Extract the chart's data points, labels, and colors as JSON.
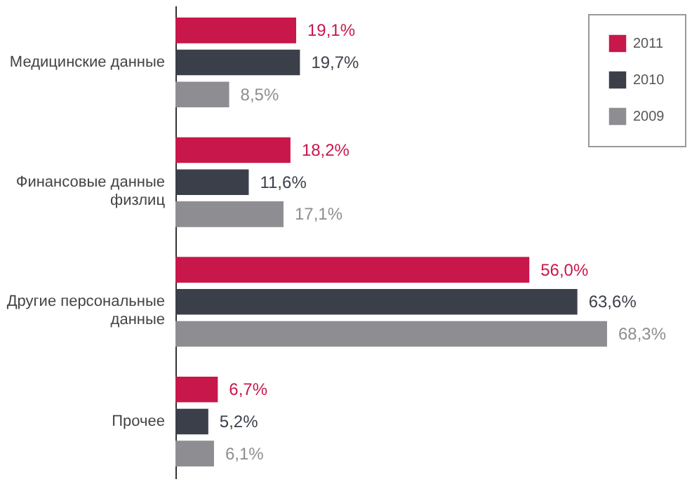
{
  "chart_data": {
    "type": "bar",
    "orientation": "horizontal",
    "legend": "top right",
    "grid": false,
    "categories": [
      "Медицинские данные",
      "Финансовые данные физлиц",
      "Другие персональные данные",
      "Прочее"
    ],
    "series": [
      {
        "name": "2011",
        "color": "#c8174a",
        "values": [
          19.1,
          18.2,
          56.0,
          6.7
        ],
        "value_labels": [
          "19,1%",
          "18,2%",
          "56,0%",
          "6,7%"
        ]
      },
      {
        "name": "2010",
        "color": "#3b3f4a",
        "values": [
          19.7,
          11.6,
          63.6,
          5.2
        ],
        "value_labels": [
          "19,7%",
          "11,6%",
          "63,6%",
          "5,2%"
        ]
      },
      {
        "name": "2009",
        "color": "#8e8e92",
        "values": [
          8.5,
          17.1,
          68.3,
          6.1
        ],
        "value_labels": [
          "8,5%",
          "17,1%",
          "68,3%",
          "6,1%"
        ]
      }
    ]
  }
}
